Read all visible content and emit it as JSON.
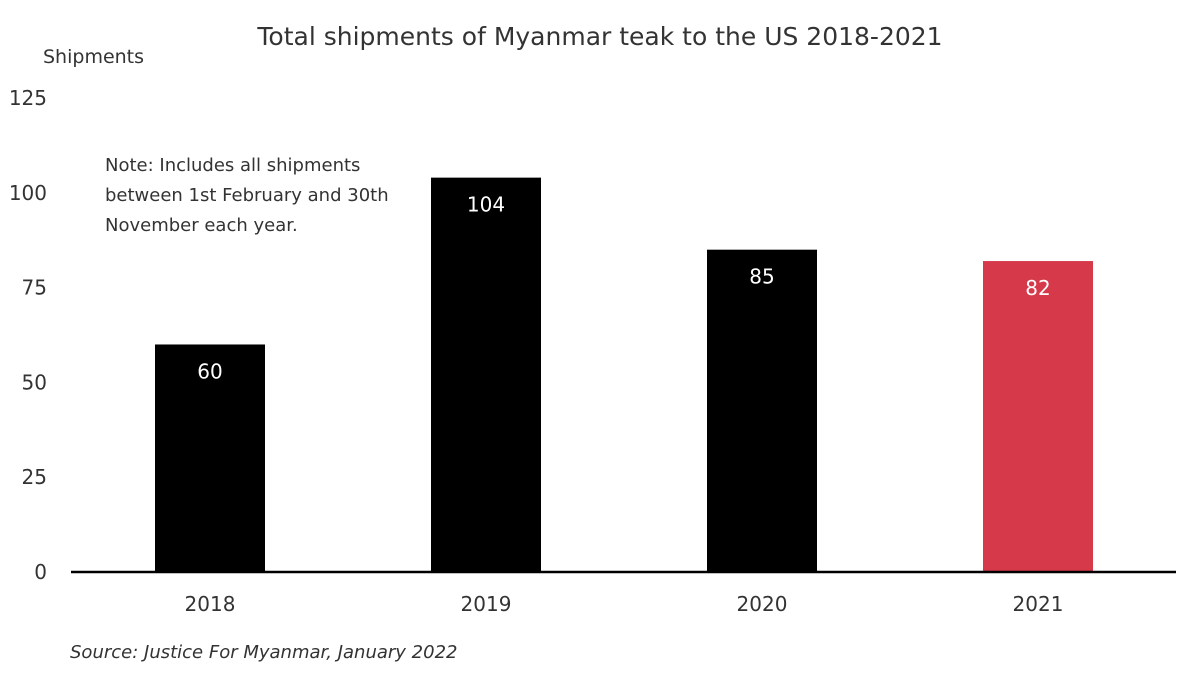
{
  "chart_data": {
    "type": "bar",
    "title": "Total shipments of Myanmar teak to the US 2018-2021",
    "ylabel": "Shipments",
    "xlabel": "",
    "categories": [
      "2018",
      "2019",
      "2020",
      "2021"
    ],
    "values": [
      60,
      104,
      85,
      82
    ],
    "bar_colors": [
      "#000000",
      "#000000",
      "#000000",
      "#d63a4a"
    ],
    "data_label_color": "#ffffff",
    "ylim": [
      0,
      125
    ],
    "yticks": [
      "0",
      "25",
      "50",
      "75",
      "100",
      "125"
    ],
    "grid": false,
    "note_lines": [
      "Note: Includes all shipments",
      "between 1st February and 30th",
      "November each year."
    ],
    "source": "Source: Justice For Myanmar, January 2022"
  }
}
